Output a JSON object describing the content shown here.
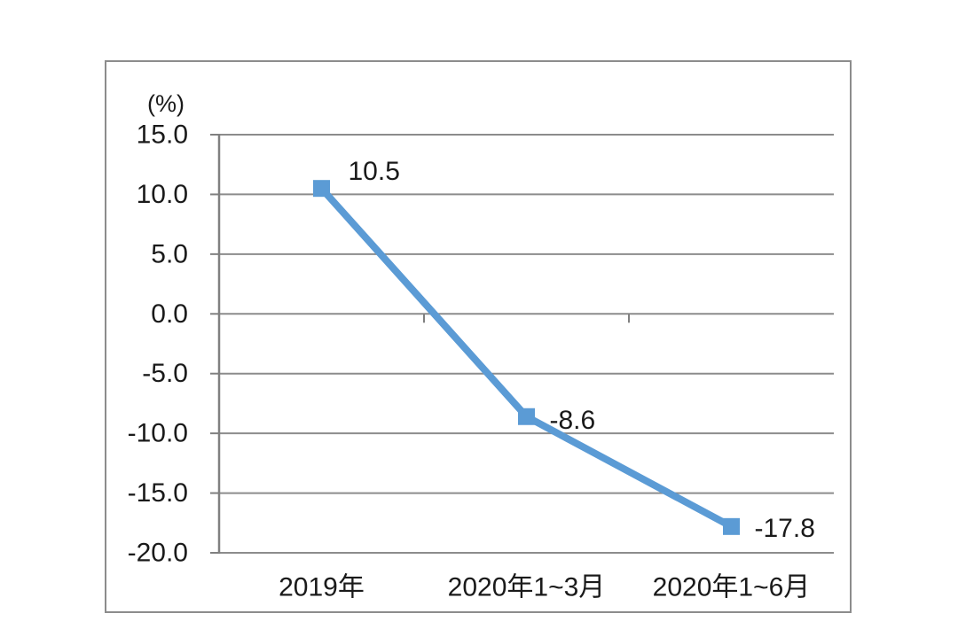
{
  "chart_data": {
    "type": "line",
    "title": "",
    "unit_label": "(%)",
    "categories": [
      "2019年",
      "2020年1~3月",
      "2020年1~6月"
    ],
    "series": [
      {
        "name": "",
        "values": [
          10.5,
          -8.6,
          -17.8
        ]
      }
    ],
    "data_labels": [
      "10.5",
      "-8.6",
      "-17.8"
    ],
    "y_tick_values": [
      15,
      10,
      5,
      0,
      -5,
      -10,
      -15,
      -20
    ],
    "y_tick_labels": [
      "15.0",
      "10.0",
      "5.0",
      "0.0",
      "-5.0",
      "-10.0",
      "-15.0",
      "-20.0"
    ],
    "ylim": [
      -20,
      15
    ],
    "grid": "horizontal",
    "legend": "none",
    "colors": {
      "line": "#5b9bd5",
      "marker": "#5b9bd5",
      "gridline": "#8c8c8c",
      "axis": "#808080",
      "frame_border": "#8c8c8c",
      "text": "#1a1a1a",
      "background": "#ffffff"
    },
    "marker_shape": "square"
  }
}
